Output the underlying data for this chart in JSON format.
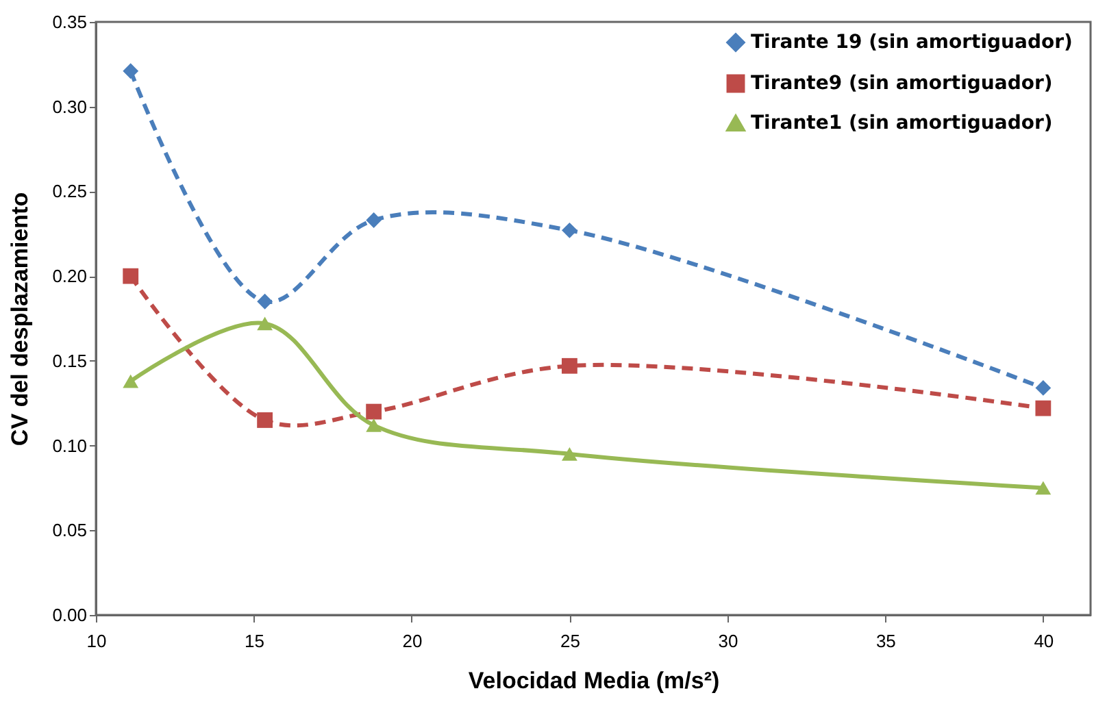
{
  "chart_data": {
    "type": "line",
    "xlabel": "Velocidad Media  (m/s²)",
    "ylabel": "CV del  desplazamiento",
    "x": [
      11.1,
      15.35,
      18.8,
      25,
      40
    ],
    "series": [
      {
        "name": "Tirante 19  (sin amortiguador)",
        "color": "#4a7ebb",
        "marker": "diamond",
        "line_style": "dashed",
        "values": [
          0.321,
          0.185,
          0.233,
          0.227,
          0.134
        ]
      },
      {
        "name": "Tirante9  (sin amortiguador)",
        "color": "#be4b48",
        "marker": "square",
        "line_style": "dashed",
        "values": [
          0.2,
          0.115,
          0.12,
          0.147,
          0.122
        ]
      },
      {
        "name": "Tirante1  (sin amortiguador)",
        "color": "#98b954",
        "marker": "triangle",
        "line_style": "solid",
        "values": [
          0.138,
          0.172,
          0.112,
          0.095,
          0.075
        ]
      }
    ],
    "xlim": [
      10,
      41.5
    ],
    "xticks": [
      10,
      15,
      20,
      25,
      30,
      35,
      40
    ],
    "ylim": [
      0,
      0.35
    ],
    "yticks": [
      {
        "value": 0,
        "label": "0.00"
      },
      0.05,
      {
        "value": 0.1,
        "label": "0.10"
      },
      0.15,
      {
        "value": 0.2,
        "label": "0.20"
      },
      0.25,
      {
        "value": 0.3,
        "label": "0.30"
      },
      0.35
    ],
    "grid": false,
    "legend": "top right"
  }
}
